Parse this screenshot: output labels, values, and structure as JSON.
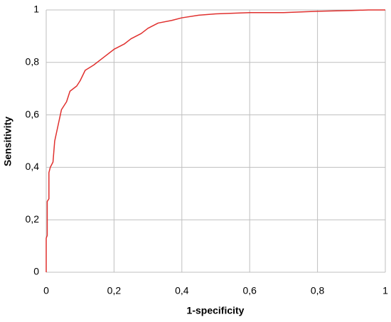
{
  "chart_data": {
    "type": "line",
    "xlabel": "1-specificity",
    "ylabel": "Sensitivity",
    "x": [
      0,
      0,
      0.003,
      0.003,
      0.008,
      0.008,
      0.012,
      0.02,
      0.025,
      0.035,
      0.045,
      0.06,
      0.07,
      0.09,
      0.1,
      0.115,
      0.14,
      0.17,
      0.2,
      0.23,
      0.25,
      0.28,
      0.3,
      0.33,
      0.37,
      0.4,
      0.45,
      0.5,
      0.6,
      0.7,
      0.8,
      0.9,
      0.95,
      1
    ],
    "values": [
      0,
      0.13,
      0.14,
      0.27,
      0.28,
      0.38,
      0.4,
      0.42,
      0.5,
      0.56,
      0.62,
      0.65,
      0.69,
      0.71,
      0.73,
      0.77,
      0.79,
      0.82,
      0.85,
      0.87,
      0.89,
      0.91,
      0.93,
      0.95,
      0.96,
      0.97,
      0.98,
      0.985,
      0.99,
      0.99,
      0.995,
      0.998,
      1,
      1
    ],
    "color": "#e0302e",
    "xlim": [
      0,
      1
    ],
    "ylim": [
      0,
      1
    ],
    "xticks": [
      0,
      {
        "value": 0.2,
        "label": "0,2"
      },
      {
        "value": 0.4,
        "label": "0,4"
      },
      {
        "value": 0.6,
        "label": "0,6"
      },
      {
        "value": 0.8,
        "label": "0,8"
      },
      1
    ],
    "yticks": [
      0,
      {
        "value": 0.2,
        "label": "0,2"
      },
      {
        "value": 0.4,
        "label": "0,4"
      },
      {
        "value": 0.6,
        "label": "0,6"
      },
      {
        "value": 0.8,
        "label": "0,8"
      },
      1
    ],
    "grid": true
  }
}
